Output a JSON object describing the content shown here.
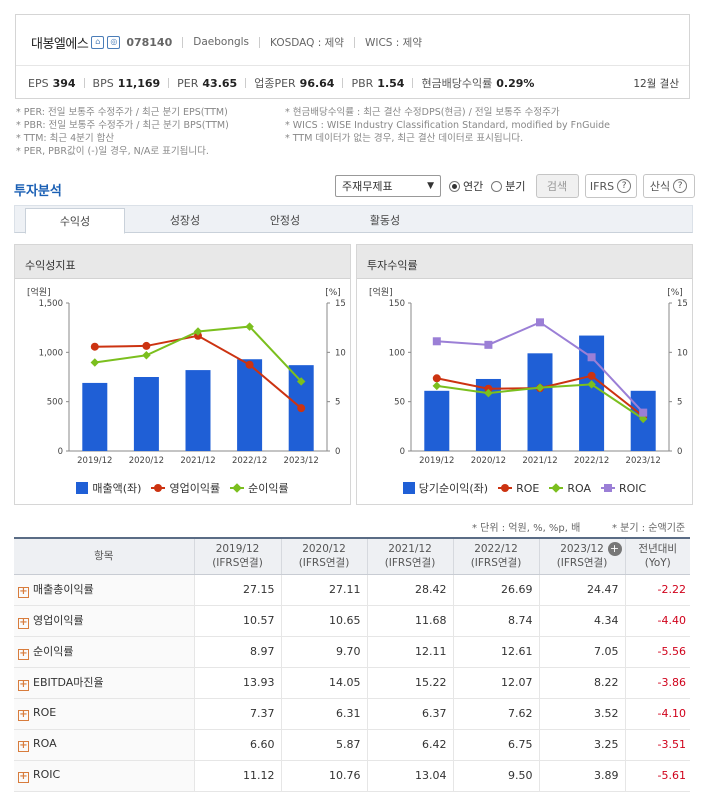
{
  "header": {
    "company": "대봉엘에스",
    "code": "078140",
    "eng_name": "Daebongls",
    "market": "KOSDAQ : 제약",
    "wics": "WICS : 제약",
    "home_icon": "home-icon",
    "info_icon": "info-icon",
    "metrics": [
      {
        "label": "EPS",
        "value": "394"
      },
      {
        "label": "BPS",
        "value": "11,169"
      },
      {
        "label": "PER",
        "value": "43.65"
      },
      {
        "label": "업종PER",
        "value": "96.64"
      },
      {
        "label": "PBR",
        "value": "1.54"
      },
      {
        "label": "현금배당수익률",
        "value": "0.29%"
      }
    ],
    "fiscal": "12월 결산"
  },
  "notes_left": [
    "* PER: 전일 보통주 수정주가 / 최근 분기 EPS(TTM)",
    "* PBR: 전일 보통주 수정주가 / 최근 분기 BPS(TTM)",
    "* TTM: 최근 4분기 합산",
    "* PER, PBR값이 (-)일 경우, N/A로 표기됩니다."
  ],
  "notes_right": [
    "* 현금배당수익률 : 최근 결산 수정DPS(현금) / 전일 보통주 수정주가",
    "* WICS : WISE Industry Classification Standard, modified by FnGuide",
    "* TTM 데이터가 없는 경우, 최근 결산 데이터로 표시됩니다."
  ],
  "section": {
    "title": "투자분석",
    "select_value": "주재무제표",
    "radio_annual": "연간",
    "radio_quarter": "분기",
    "search_label": "검색",
    "ifrs_label": "IFRS",
    "sansik_label": "산식"
  },
  "tabs": [
    "수익성",
    "성장성",
    "안정성",
    "활동성"
  ],
  "colors": {
    "bar": "#1f5fd6",
    "red": "#cc3311",
    "green": "#7bbf1e",
    "purple": "#9b7fd6"
  },
  "chart_data": [
    {
      "type": "bar",
      "title": "수익성지표",
      "left_unit": "[억원]",
      "right_unit": "[%]",
      "categories": [
        "2019/12",
        "2020/12",
        "2021/12",
        "2022/12",
        "2023/12"
      ],
      "ylim": [
        0,
        1500
      ],
      "y2lim": [
        0,
        15
      ],
      "yticks": [
        "1,500",
        "1,000",
        "500",
        "0"
      ],
      "y2ticks": [
        "15",
        "10",
        "5",
        "0"
      ],
      "series": [
        {
          "name": "매출액(좌)",
          "kind": "bar",
          "axis": "left",
          "values": [
            690,
            750,
            820,
            930,
            870
          ]
        },
        {
          "name": "영업이익률",
          "kind": "line",
          "axis": "right",
          "marker": "circle",
          "values": [
            10.57,
            10.65,
            11.68,
            8.74,
            4.34
          ]
        },
        {
          "name": "순이익률",
          "kind": "line",
          "axis": "right",
          "marker": "diamond",
          "values": [
            8.97,
            9.7,
            12.11,
            12.61,
            7.05
          ]
        }
      ],
      "grid": false,
      "legend": "bottom"
    },
    {
      "type": "bar",
      "title": "투자수익률",
      "left_unit": "[억원]",
      "right_unit": "[%]",
      "categories": [
        "2019/12",
        "2020/12",
        "2021/12",
        "2022/12",
        "2023/12"
      ],
      "ylim": [
        0,
        150
      ],
      "y2lim": [
        0,
        15
      ],
      "yticks": [
        "150",
        "100",
        "50",
        "0"
      ],
      "y2ticks": [
        "15",
        "10",
        "5",
        "0"
      ],
      "series": [
        {
          "name": "당기순이익(좌)",
          "kind": "bar",
          "axis": "left",
          "values": [
            61,
            73,
            99,
            117,
            61
          ]
        },
        {
          "name": "ROE",
          "kind": "line",
          "axis": "right",
          "marker": "circle",
          "values": [
            7.37,
            6.31,
            6.37,
            7.62,
            3.52
          ]
        },
        {
          "name": "ROA",
          "kind": "line",
          "axis": "right",
          "marker": "diamond",
          "values": [
            6.6,
            5.87,
            6.42,
            6.75,
            3.25
          ]
        },
        {
          "name": "ROIC",
          "kind": "line",
          "axis": "right",
          "marker": "square",
          "values": [
            11.12,
            10.76,
            13.04,
            9.5,
            3.89
          ]
        }
      ],
      "grid": false,
      "legend": "bottom"
    }
  ],
  "units_note": "* 단위 : 억원, %, %p, 배",
  "quarter_note": "* 분기 : 순액기준",
  "table": {
    "headers": [
      {
        "l1": "항목",
        "l2": ""
      },
      {
        "l1": "2019/12",
        "l2": "(IFRS연결)"
      },
      {
        "l1": "2020/12",
        "l2": "(IFRS연결)"
      },
      {
        "l1": "2021/12",
        "l2": "(IFRS연결)"
      },
      {
        "l1": "2022/12",
        "l2": "(IFRS연결)"
      },
      {
        "l1": "2023/12",
        "l2": "(IFRS연결)"
      },
      {
        "l1": "전년대비",
        "l2": "(YoY)"
      }
    ],
    "rows": [
      {
        "name": "매출총이익률",
        "vals": [
          "27.15",
          "27.11",
          "28.42",
          "26.69",
          "24.47"
        ],
        "yoy": "-2.22"
      },
      {
        "name": "영업이익률",
        "vals": [
          "10.57",
          "10.65",
          "11.68",
          "8.74",
          "4.34"
        ],
        "yoy": "-4.40"
      },
      {
        "name": "순이익률",
        "vals": [
          "8.97",
          "9.70",
          "12.11",
          "12.61",
          "7.05"
        ],
        "yoy": "-5.56"
      },
      {
        "name": "EBITDA마진율",
        "vals": [
          "13.93",
          "14.05",
          "15.22",
          "12.07",
          "8.22"
        ],
        "yoy": "-3.86"
      },
      {
        "name": "ROE",
        "vals": [
          "7.37",
          "6.31",
          "6.37",
          "7.62",
          "3.52"
        ],
        "yoy": "-4.10"
      },
      {
        "name": "ROA",
        "vals": [
          "6.60",
          "5.87",
          "6.42",
          "6.75",
          "3.25"
        ],
        "yoy": "-3.51"
      },
      {
        "name": "ROIC",
        "vals": [
          "11.12",
          "10.76",
          "13.04",
          "9.50",
          "3.89"
        ],
        "yoy": "-5.61"
      }
    ]
  }
}
